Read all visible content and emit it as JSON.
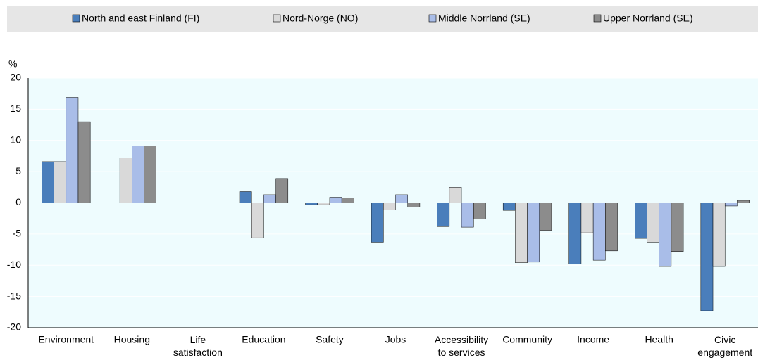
{
  "chart_data": {
    "type": "bar",
    "y_label": "%",
    "categories": [
      "Environment",
      "Housing",
      "Life satisfaction",
      "Education",
      "Safety",
      "Jobs",
      "Accessibility to services",
      "Community",
      "Income",
      "Health",
      "Civic engagement"
    ],
    "series": [
      {
        "name": "North and east Finland (FI)",
        "color": "#4a7ebb",
        "values": [
          6.6,
          null,
          null,
          1.8,
          -0.3,
          -6.3,
          -3.8,
          -1.2,
          -9.8,
          -5.7,
          -17.3
        ]
      },
      {
        "name": "Nord-Norge (NO)",
        "color": "#d9d9d9",
        "values": [
          6.6,
          7.2,
          null,
          -5.6,
          -0.3,
          -1.1,
          2.5,
          -9.6,
          -4.8,
          -6.3,
          -10.2
        ]
      },
      {
        "name": "Middle Norrland (SE)",
        "color": "#a9bde8",
        "values": [
          16.9,
          9.1,
          null,
          1.3,
          0.9,
          1.3,
          -3.9,
          -9.5,
          -9.2,
          -10.2,
          -0.5
        ]
      },
      {
        "name": "Upper Norrland (SE)",
        "color": "#8c8c8c",
        "values": [
          13.0,
          9.1,
          null,
          3.9,
          0.8,
          -0.7,
          -2.6,
          -4.4,
          -7.7,
          -7.8,
          0.4
        ]
      }
    ],
    "ylim": [
      -20,
      20
    ],
    "yticks": [
      -20,
      -15,
      -10,
      -5,
      0,
      5,
      10,
      15,
      20
    ],
    "grid": true
  }
}
